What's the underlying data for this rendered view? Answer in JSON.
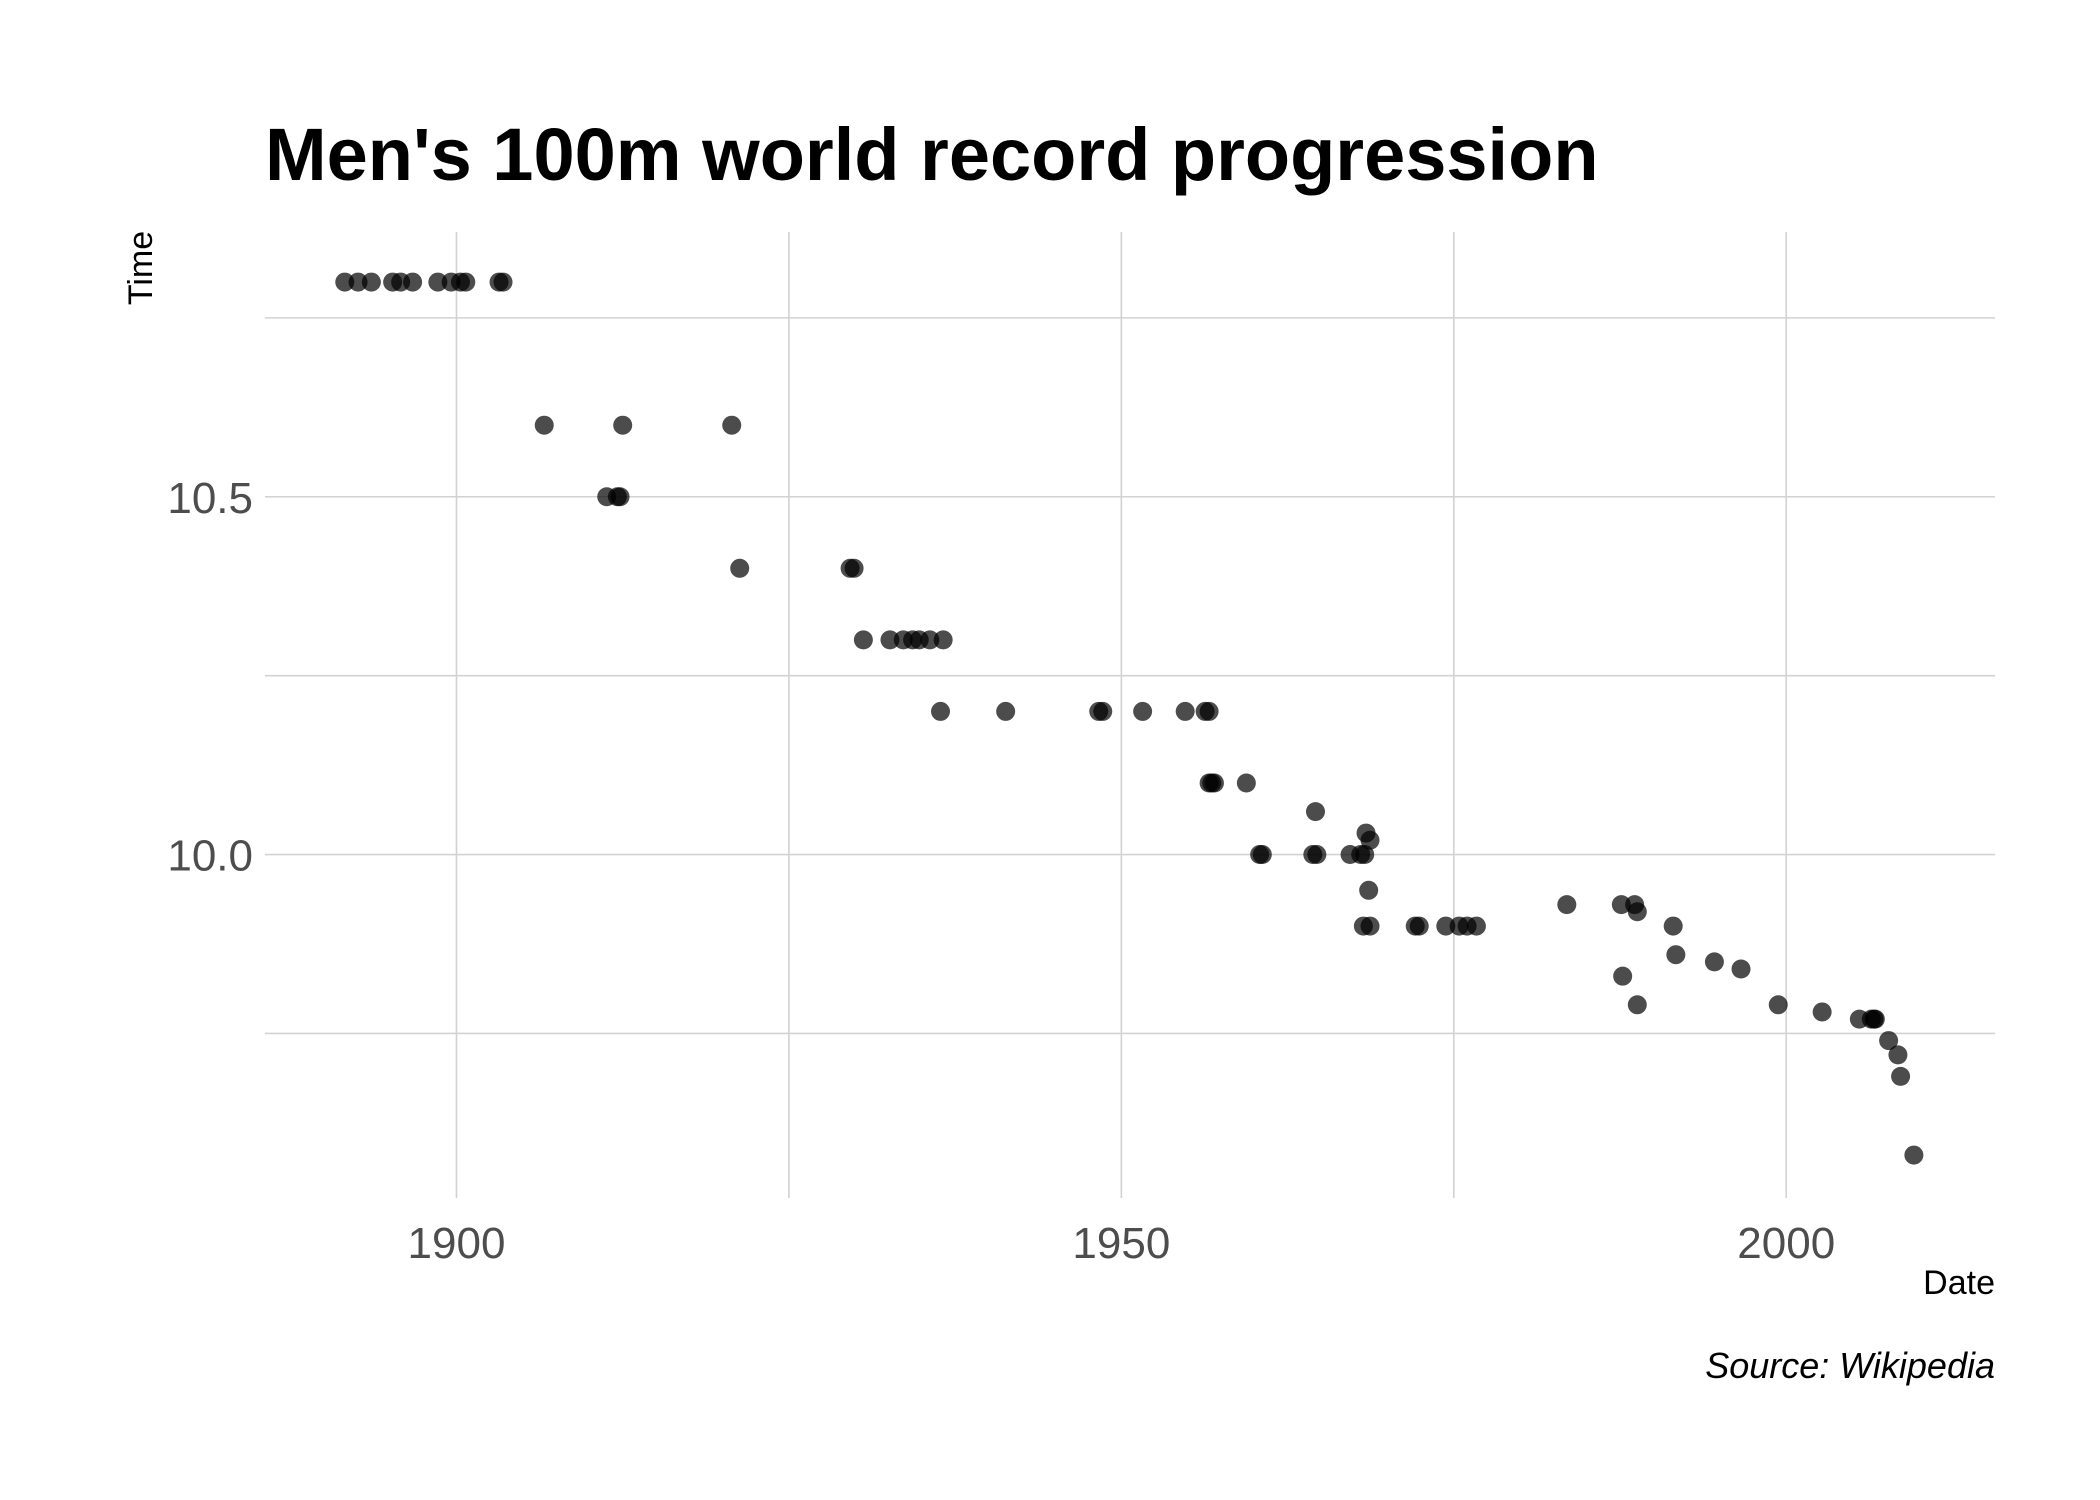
{
  "chart_data": {
    "type": "scatter",
    "title": "Men's 100m world record progression",
    "xlabel": "Date",
    "ylabel": "Time",
    "caption": "Source: Wikipedia",
    "xlim": [
      1885.6,
      2015.7
    ],
    "ylim": [
      9.52,
      10.87
    ],
    "x_ticks": [
      1900,
      1950,
      2000
    ],
    "x_tick_labels": [
      "1900",
      "1950",
      "2000"
    ],
    "y_ticks": [
      10.0,
      10.5
    ],
    "y_tick_labels": [
      "10.0",
      "10.5"
    ],
    "x_gridlines": [
      1900,
      1925,
      1950,
      1975,
      2000
    ],
    "y_gridlines": [
      9.75,
      10.0,
      10.25,
      10.5,
      10.75
    ],
    "grid": true,
    "legend": "none",
    "point_color": "#000000",
    "point_opacity": 0.7,
    "points": [
      {
        "x": 1891.6,
        "y": 10.8
      },
      {
        "x": 1892.6,
        "y": 10.8
      },
      {
        "x": 1893.6,
        "y": 10.8
      },
      {
        "x": 1895.2,
        "y": 10.8
      },
      {
        "x": 1895.8,
        "y": 10.8
      },
      {
        "x": 1896.7,
        "y": 10.8
      },
      {
        "x": 1898.6,
        "y": 10.8
      },
      {
        "x": 1899.6,
        "y": 10.8
      },
      {
        "x": 1900.3,
        "y": 10.8
      },
      {
        "x": 1900.7,
        "y": 10.8
      },
      {
        "x": 1903.2,
        "y": 10.8
      },
      {
        "x": 1903.5,
        "y": 10.8
      },
      {
        "x": 1906.6,
        "y": 10.6
      },
      {
        "x": 1912.5,
        "y": 10.6
      },
      {
        "x": 1920.7,
        "y": 10.6
      },
      {
        "x": 1911.3,
        "y": 10.5
      },
      {
        "x": 1912.1,
        "y": 10.5
      },
      {
        "x": 1912.3,
        "y": 10.5
      },
      {
        "x": 1921.3,
        "y": 10.4
      },
      {
        "x": 1929.6,
        "y": 10.4
      },
      {
        "x": 1929.9,
        "y": 10.4
      },
      {
        "x": 1930.6,
        "y": 10.3
      },
      {
        "x": 1932.6,
        "y": 10.3
      },
      {
        "x": 1933.6,
        "y": 10.3
      },
      {
        "x": 1934.3,
        "y": 10.3
      },
      {
        "x": 1934.8,
        "y": 10.3
      },
      {
        "x": 1935.6,
        "y": 10.3
      },
      {
        "x": 1936.6,
        "y": 10.3
      },
      {
        "x": 1936.4,
        "y": 10.2
      },
      {
        "x": 1941.3,
        "y": 10.2
      },
      {
        "x": 1948.3,
        "y": 10.2
      },
      {
        "x": 1948.6,
        "y": 10.2
      },
      {
        "x": 1951.6,
        "y": 10.2
      },
      {
        "x": 1954.8,
        "y": 10.2
      },
      {
        "x": 1956.3,
        "y": 10.2
      },
      {
        "x": 1956.6,
        "y": 10.2
      },
      {
        "x": 1956.6,
        "y": 10.1
      },
      {
        "x": 1956.8,
        "y": 10.1
      },
      {
        "x": 1957.0,
        "y": 10.1
      },
      {
        "x": 1959.4,
        "y": 10.1
      },
      {
        "x": 1960.4,
        "y": 10.0
      },
      {
        "x": 1960.6,
        "y": 10.0
      },
      {
        "x": 1964.6,
        "y": 10.06
      },
      {
        "x": 1964.4,
        "y": 10.0
      },
      {
        "x": 1964.7,
        "y": 10.0
      },
      {
        "x": 1967.2,
        "y": 10.0
      },
      {
        "x": 1968.0,
        "y": 10.0
      },
      {
        "x": 1968.3,
        "y": 10.0
      },
      {
        "x": 1968.4,
        "y": 10.03
      },
      {
        "x": 1968.7,
        "y": 10.02
      },
      {
        "x": 1968.6,
        "y": 9.95
      },
      {
        "x": 1968.2,
        "y": 9.9
      },
      {
        "x": 1968.7,
        "y": 9.9
      },
      {
        "x": 1972.1,
        "y": 9.9
      },
      {
        "x": 1972.4,
        "y": 9.9
      },
      {
        "x": 1974.4,
        "y": 9.9
      },
      {
        "x": 1975.4,
        "y": 9.9
      },
      {
        "x": 1976.0,
        "y": 9.9
      },
      {
        "x": 1976.7,
        "y": 9.9
      },
      {
        "x": 1983.5,
        "y": 9.93
      },
      {
        "x": 1987.6,
        "y": 9.93
      },
      {
        "x": 1988.6,
        "y": 9.93
      },
      {
        "x": 1988.8,
        "y": 9.92
      },
      {
        "x": 1987.7,
        "y": 9.83
      },
      {
        "x": 1988.8,
        "y": 9.79
      },
      {
        "x": 1991.5,
        "y": 9.9
      },
      {
        "x": 1991.7,
        "y": 9.86
      },
      {
        "x": 1994.6,
        "y": 9.85
      },
      {
        "x": 1996.6,
        "y": 9.84
      },
      {
        "x": 1999.4,
        "y": 9.79
      },
      {
        "x": 2002.7,
        "y": 9.78
      },
      {
        "x": 2005.5,
        "y": 9.77
      },
      {
        "x": 2006.4,
        "y": 9.77
      },
      {
        "x": 2006.6,
        "y": 9.77
      },
      {
        "x": 2006.7,
        "y": 9.77
      },
      {
        "x": 2007.7,
        "y": 9.74
      },
      {
        "x": 2008.4,
        "y": 9.72
      },
      {
        "x": 2008.6,
        "y": 9.69
      },
      {
        "x": 2009.6,
        "y": 9.58
      }
    ]
  }
}
